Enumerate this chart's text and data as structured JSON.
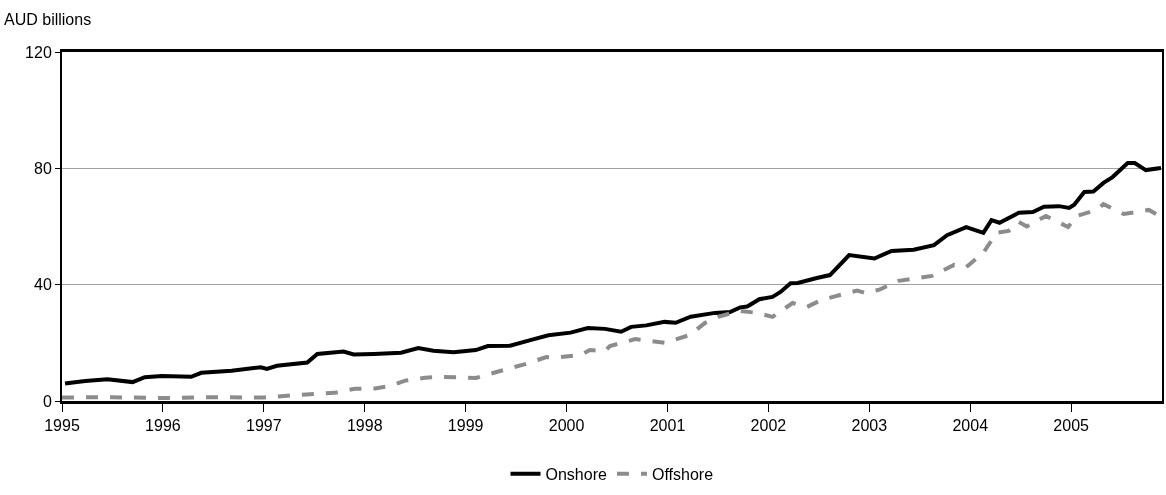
{
  "chart_data": {
    "type": "line",
    "ylabel": "AUD billions",
    "xlim": [
      1995,
      2005.9
    ],
    "xticks": [
      1995,
      1996,
      1997,
      1998,
      1999,
      2000,
      2001,
      2002,
      2003,
      2004,
      2005
    ],
    "ylim": [
      0,
      120
    ],
    "yticks": [
      0,
      40,
      80,
      120
    ],
    "grid": "y",
    "legend": "bottom",
    "marker": "none",
    "series": [
      {
        "name": "Onshore",
        "color": "#000000",
        "line_style": "solid",
        "x": [
          1995.03,
          1995.23,
          1995.45,
          1995.7,
          1995.82,
          1995.99,
          1996.28,
          1996.38,
          1996.68,
          1996.97,
          1997.03,
          1997.13,
          1997.43,
          1997.53,
          1997.79,
          1997.89,
          1998.09,
          1998.36,
          1998.53,
          1998.68,
          1998.88,
          1999.1,
          1999.22,
          1999.44,
          1999.65,
          1999.82,
          2000.04,
          2000.21,
          2000.38,
          2000.54,
          2000.64,
          2000.79,
          2000.97,
          2001.08,
          2001.23,
          2001.47,
          2001.62,
          2001.72,
          2001.79,
          2001.91,
          2002.04,
          2002.12,
          2002.22,
          2002.29,
          2002.48,
          2002.61,
          2002.8,
          2003.05,
          2003.22,
          2003.44,
          2003.64,
          2003.77,
          2003.96,
          2004.13,
          2004.21,
          2004.29,
          2004.48,
          2004.62,
          2004.73,
          2004.88,
          2004.98,
          2005.03,
          2005.13,
          2005.22,
          2005.32,
          2005.41,
          2005.56,
          2005.63,
          2005.74,
          2005.89
        ],
        "values": [
          6,
          6.9,
          7.5,
          6.5,
          8.2,
          8.6,
          8.3,
          9.7,
          10.4,
          11.6,
          11,
          12.1,
          13.2,
          16.2,
          17,
          16,
          16.2,
          16.6,
          18.2,
          17.3,
          16.8,
          17.5,
          18.9,
          19,
          21,
          22.6,
          23.5,
          25.1,
          24.8,
          23.8,
          25.5,
          26,
          27.2,
          26.9,
          29,
          30.3,
          30.6,
          32.2,
          32.5,
          35,
          35.8,
          37.5,
          40.5,
          40.6,
          42.3,
          43.3,
          50.2,
          49,
          51.6,
          52,
          53.6,
          57,
          59.8,
          57.8,
          62.2,
          61.3,
          64.7,
          65,
          66.8,
          67,
          66.4,
          67.5,
          71.9,
          72,
          75,
          77,
          81.8,
          81.8,
          79.4,
          80.1
        ]
      },
      {
        "name": "Offshore",
        "color": "#8c8c8c",
        "line_style": "dashed",
        "x": [
          1995.0,
          1995.5,
          1996.0,
          1996.5,
          1997.0,
          1997.3,
          1997.7,
          1997.9,
          1998.1,
          1998.25,
          1998.4,
          1998.6,
          1998.76,
          1999.1,
          1999.34,
          1999.59,
          1999.8,
          1999.9,
          2000.14,
          2000.23,
          2000.38,
          2000.43,
          2000.68,
          2000.98,
          2001.22,
          2001.37,
          2001.5,
          2001.71,
          2001.89,
          2002.04,
          2002.24,
          2002.38,
          2002.53,
          2002.75,
          2002.88,
          2002.96,
          2003.1,
          2003.29,
          2003.62,
          2003.84,
          2003.96,
          2004.13,
          2004.26,
          2004.38,
          2004.48,
          2004.56,
          2004.75,
          2004.97,
          2005.05,
          2005.25,
          2005.32,
          2005.52,
          2005.77,
          2005.89
        ],
        "values": [
          1.2,
          1.3,
          1,
          1.3,
          1.2,
          2,
          2.8,
          4.2,
          4.3,
          5.2,
          7,
          8,
          8.3,
          7.9,
          10.3,
          12.7,
          15.1,
          15,
          15.8,
          17.5,
          17.2,
          18.9,
          21.3,
          20,
          22.7,
          26.8,
          28.9,
          31,
          30.3,
          28.9,
          33.7,
          32.3,
          34.8,
          36.8,
          38,
          37.1,
          38.3,
          41.3,
          43,
          46.8,
          46,
          51,
          57.8,
          58.5,
          61.6,
          60,
          63.6,
          59.8,
          63.6,
          65.7,
          67.7,
          64.3,
          65.7,
          63.3
        ]
      }
    ]
  }
}
